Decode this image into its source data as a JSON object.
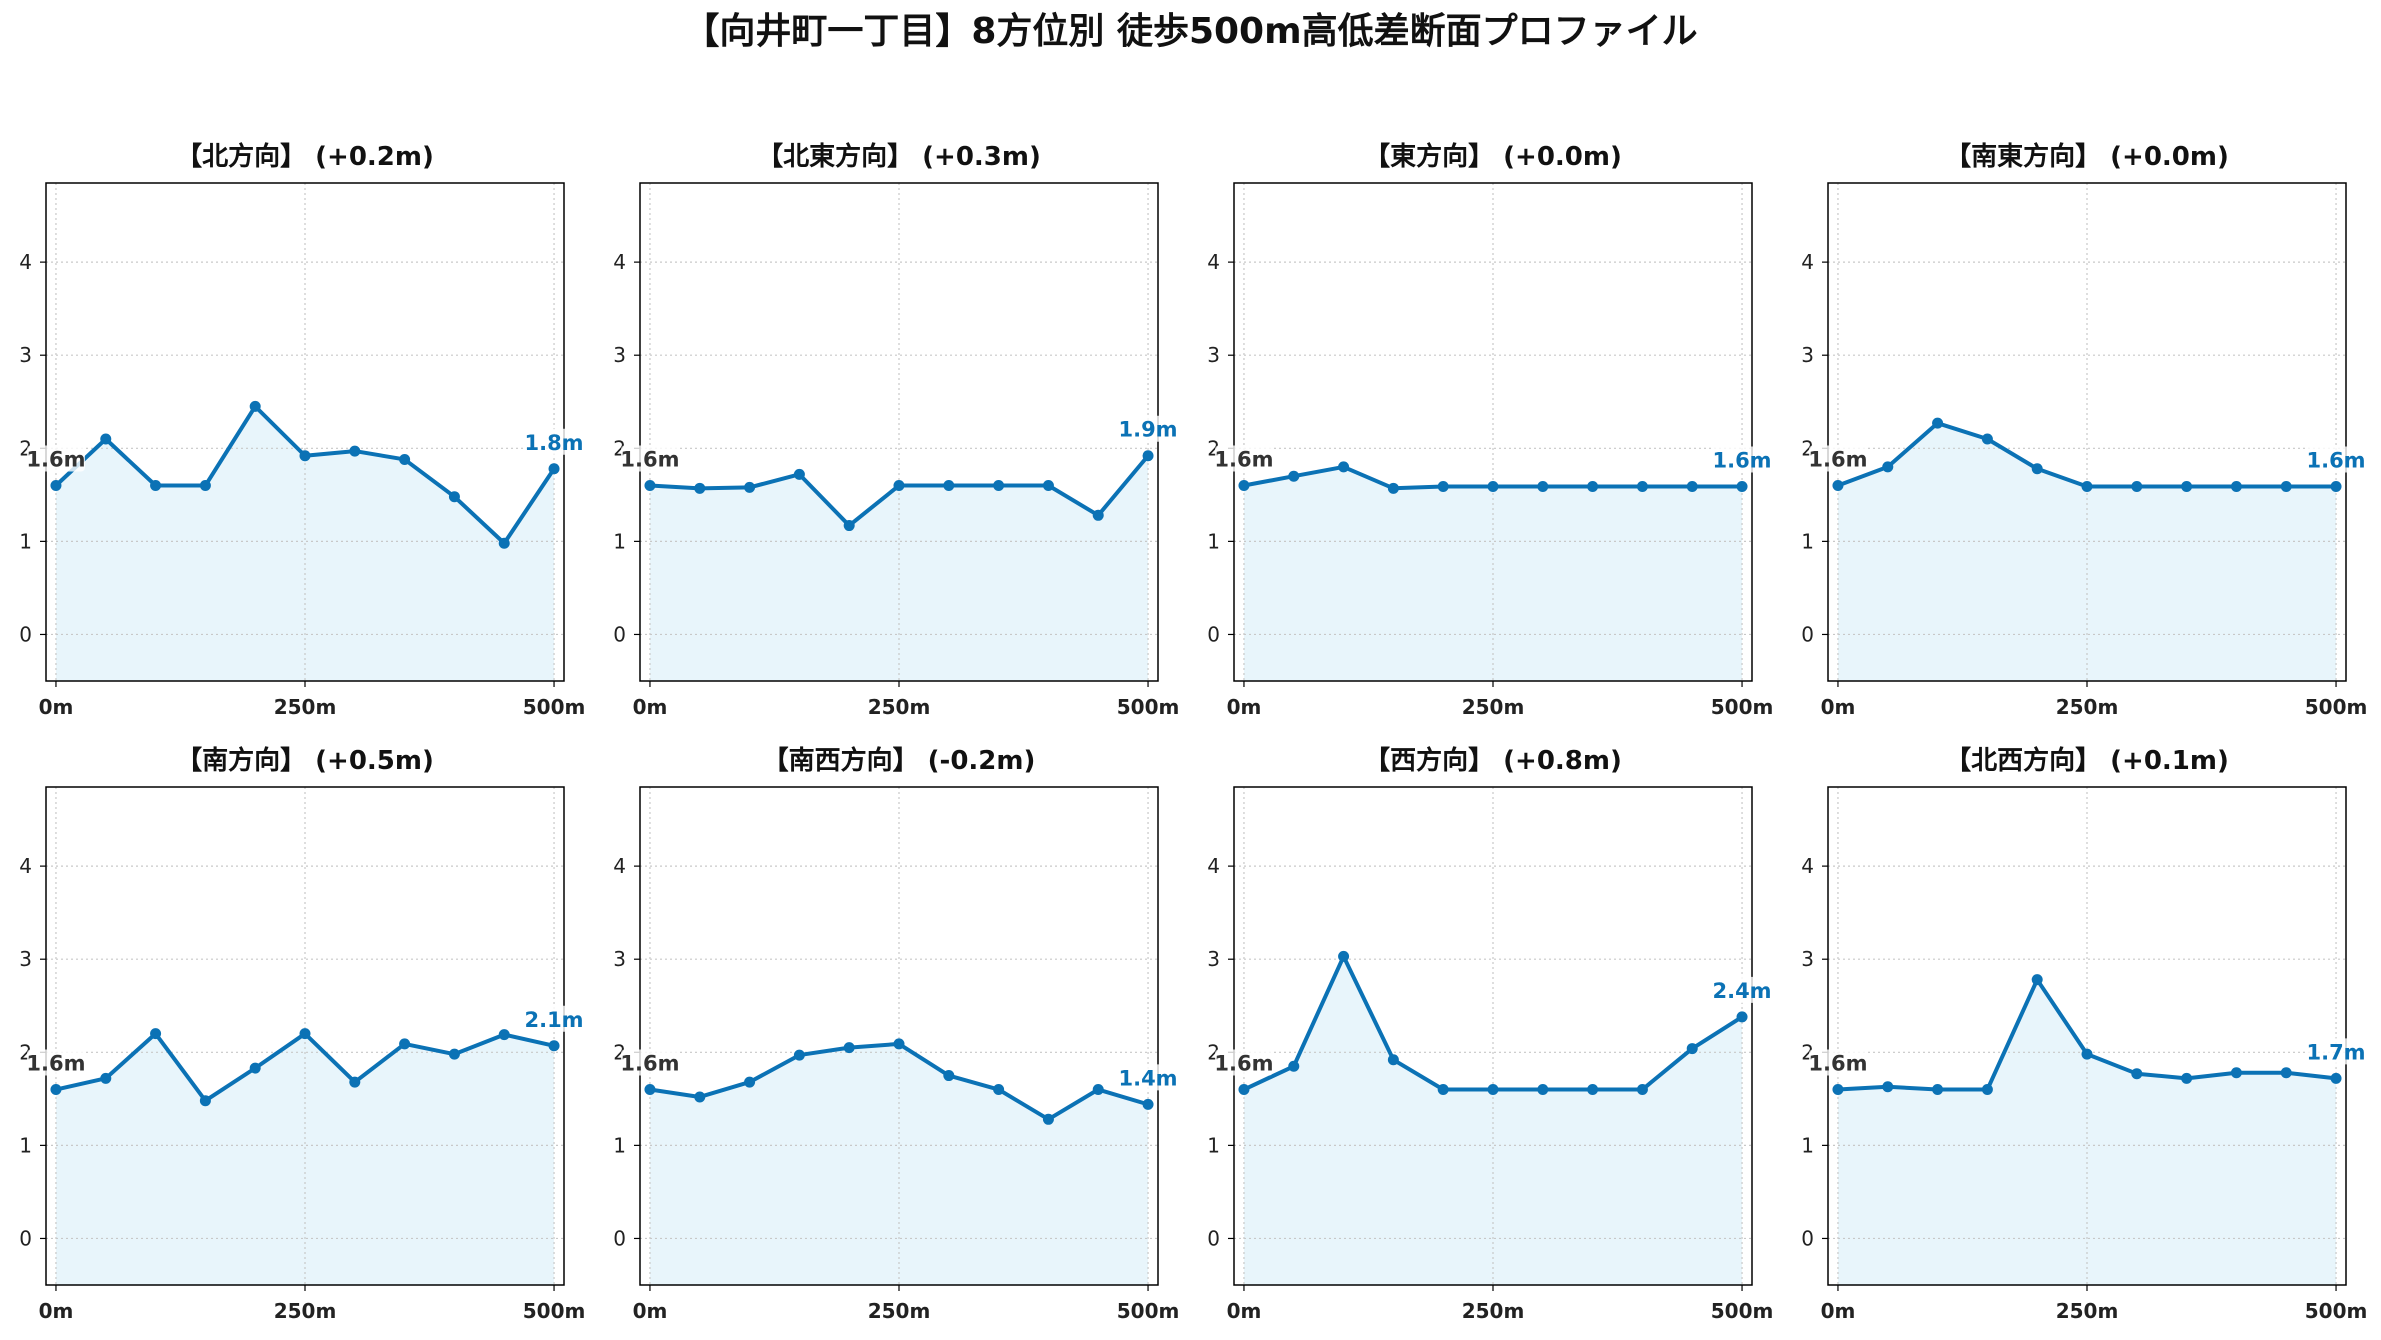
{
  "title": "【向井町一丁目】8方位別 徒歩500m高低差断面プロファイル",
  "colors": {
    "line": "#0b72b5",
    "fill": "#e8f5fb",
    "start_label": "#333333",
    "end_label": "#0b72b5",
    "grid": "#c8c8c8",
    "axis": "#000000"
  },
  "chart_data": [
    {
      "type": "area",
      "title": "【北方向】 (+0.2m)",
      "x": [
        0,
        50,
        100,
        150,
        200,
        250,
        300,
        350,
        400,
        450,
        500
      ],
      "y": [
        1.6,
        2.1,
        1.6,
        1.6,
        2.45,
        1.92,
        1.97,
        1.88,
        1.48,
        0.98,
        1.78
      ],
      "start_label": "1.6m",
      "end_label": "1.8m",
      "xticks": [
        "0m",
        "250m",
        "500m"
      ],
      "yticks": [
        0,
        1,
        2,
        3,
        4
      ],
      "xlim": [
        -10,
        510
      ],
      "ylim": [
        -0.5,
        4.85
      ],
      "grid": true
    },
    {
      "type": "area",
      "title": "【北東方向】 (+0.3m)",
      "x": [
        0,
        50,
        100,
        150,
        200,
        250,
        300,
        350,
        400,
        450,
        500
      ],
      "y": [
        1.6,
        1.57,
        1.58,
        1.72,
        1.17,
        1.6,
        1.6,
        1.6,
        1.6,
        1.28,
        1.92
      ],
      "start_label": "1.6m",
      "end_label": "1.9m",
      "xticks": [
        "0m",
        "250m",
        "500m"
      ],
      "yticks": [
        0,
        1,
        2,
        3,
        4
      ],
      "xlim": [
        -10,
        510
      ],
      "ylim": [
        -0.5,
        4.85
      ],
      "grid": true
    },
    {
      "type": "area",
      "title": "【東方向】 (+0.0m)",
      "x": [
        0,
        50,
        100,
        150,
        200,
        250,
        300,
        350,
        400,
        450,
        500
      ],
      "y": [
        1.6,
        1.7,
        1.8,
        1.57,
        1.59,
        1.59,
        1.59,
        1.59,
        1.59,
        1.59,
        1.59
      ],
      "start_label": "1.6m",
      "end_label": "1.6m",
      "xticks": [
        "0m",
        "250m",
        "500m"
      ],
      "yticks": [
        0,
        1,
        2,
        3,
        4
      ],
      "xlim": [
        -10,
        510
      ],
      "ylim": [
        -0.5,
        4.85
      ],
      "grid": true
    },
    {
      "type": "area",
      "title": "【南東方向】 (+0.0m)",
      "x": [
        0,
        50,
        100,
        150,
        200,
        250,
        300,
        350,
        400,
        450,
        500
      ],
      "y": [
        1.6,
        1.8,
        2.27,
        2.1,
        1.78,
        1.59,
        1.59,
        1.59,
        1.59,
        1.59,
        1.59
      ],
      "start_label": "1.6m",
      "end_label": "1.6m",
      "xticks": [
        "0m",
        "250m",
        "500m"
      ],
      "yticks": [
        0,
        1,
        2,
        3,
        4
      ],
      "xlim": [
        -10,
        510
      ],
      "ylim": [
        -0.5,
        4.85
      ],
      "grid": true
    },
    {
      "type": "area",
      "title": "【南方向】 (+0.5m)",
      "x": [
        0,
        50,
        100,
        150,
        200,
        250,
        300,
        350,
        400,
        450,
        500
      ],
      "y": [
        1.6,
        1.72,
        2.2,
        1.48,
        1.83,
        2.2,
        1.68,
        2.09,
        1.98,
        2.19,
        2.07
      ],
      "start_label": "1.6m",
      "end_label": "2.1m",
      "xticks": [
        "0m",
        "250m",
        "500m"
      ],
      "yticks": [
        0,
        1,
        2,
        3,
        4
      ],
      "xlim": [
        -10,
        510
      ],
      "ylim": [
        -0.5,
        4.85
      ],
      "grid": true
    },
    {
      "type": "area",
      "title": "【南西方向】 (-0.2m)",
      "x": [
        0,
        50,
        100,
        150,
        200,
        250,
        300,
        350,
        400,
        450,
        500
      ],
      "y": [
        1.6,
        1.52,
        1.68,
        1.97,
        2.05,
        2.09,
        1.75,
        1.6,
        1.28,
        1.6,
        1.44
      ],
      "start_label": "1.6m",
      "end_label": "1.4m",
      "xticks": [
        "0m",
        "250m",
        "500m"
      ],
      "yticks": [
        0,
        1,
        2,
        3,
        4
      ],
      "xlim": [
        -10,
        510
      ],
      "ylim": [
        -0.5,
        4.85
      ],
      "grid": true
    },
    {
      "type": "area",
      "title": "【西方向】 (+0.8m)",
      "x": [
        0,
        50,
        100,
        150,
        200,
        250,
        300,
        350,
        400,
        450,
        500
      ],
      "y": [
        1.6,
        1.85,
        3.03,
        1.92,
        1.6,
        1.6,
        1.6,
        1.6,
        1.6,
        2.04,
        2.38
      ],
      "start_label": "1.6m",
      "end_label": "2.4m",
      "xticks": [
        "0m",
        "250m",
        "500m"
      ],
      "yticks": [
        0,
        1,
        2,
        3,
        4
      ],
      "xlim": [
        -10,
        510
      ],
      "ylim": [
        -0.5,
        4.85
      ],
      "grid": true
    },
    {
      "type": "area",
      "title": "【北西方向】 (+0.1m)",
      "x": [
        0,
        50,
        100,
        150,
        200,
        250,
        300,
        350,
        400,
        450,
        500
      ],
      "y": [
        1.6,
        1.63,
        1.6,
        1.6,
        2.78,
        1.98,
        1.77,
        1.72,
        1.78,
        1.78,
        1.72
      ],
      "start_label": "1.6m",
      "end_label": "1.7m",
      "xticks": [
        "0m",
        "250m",
        "500m"
      ],
      "yticks": [
        0,
        1,
        2,
        3,
        4
      ],
      "xlim": [
        -10,
        510
      ],
      "ylim": [
        -0.5,
        4.85
      ],
      "grid": true
    }
  ]
}
